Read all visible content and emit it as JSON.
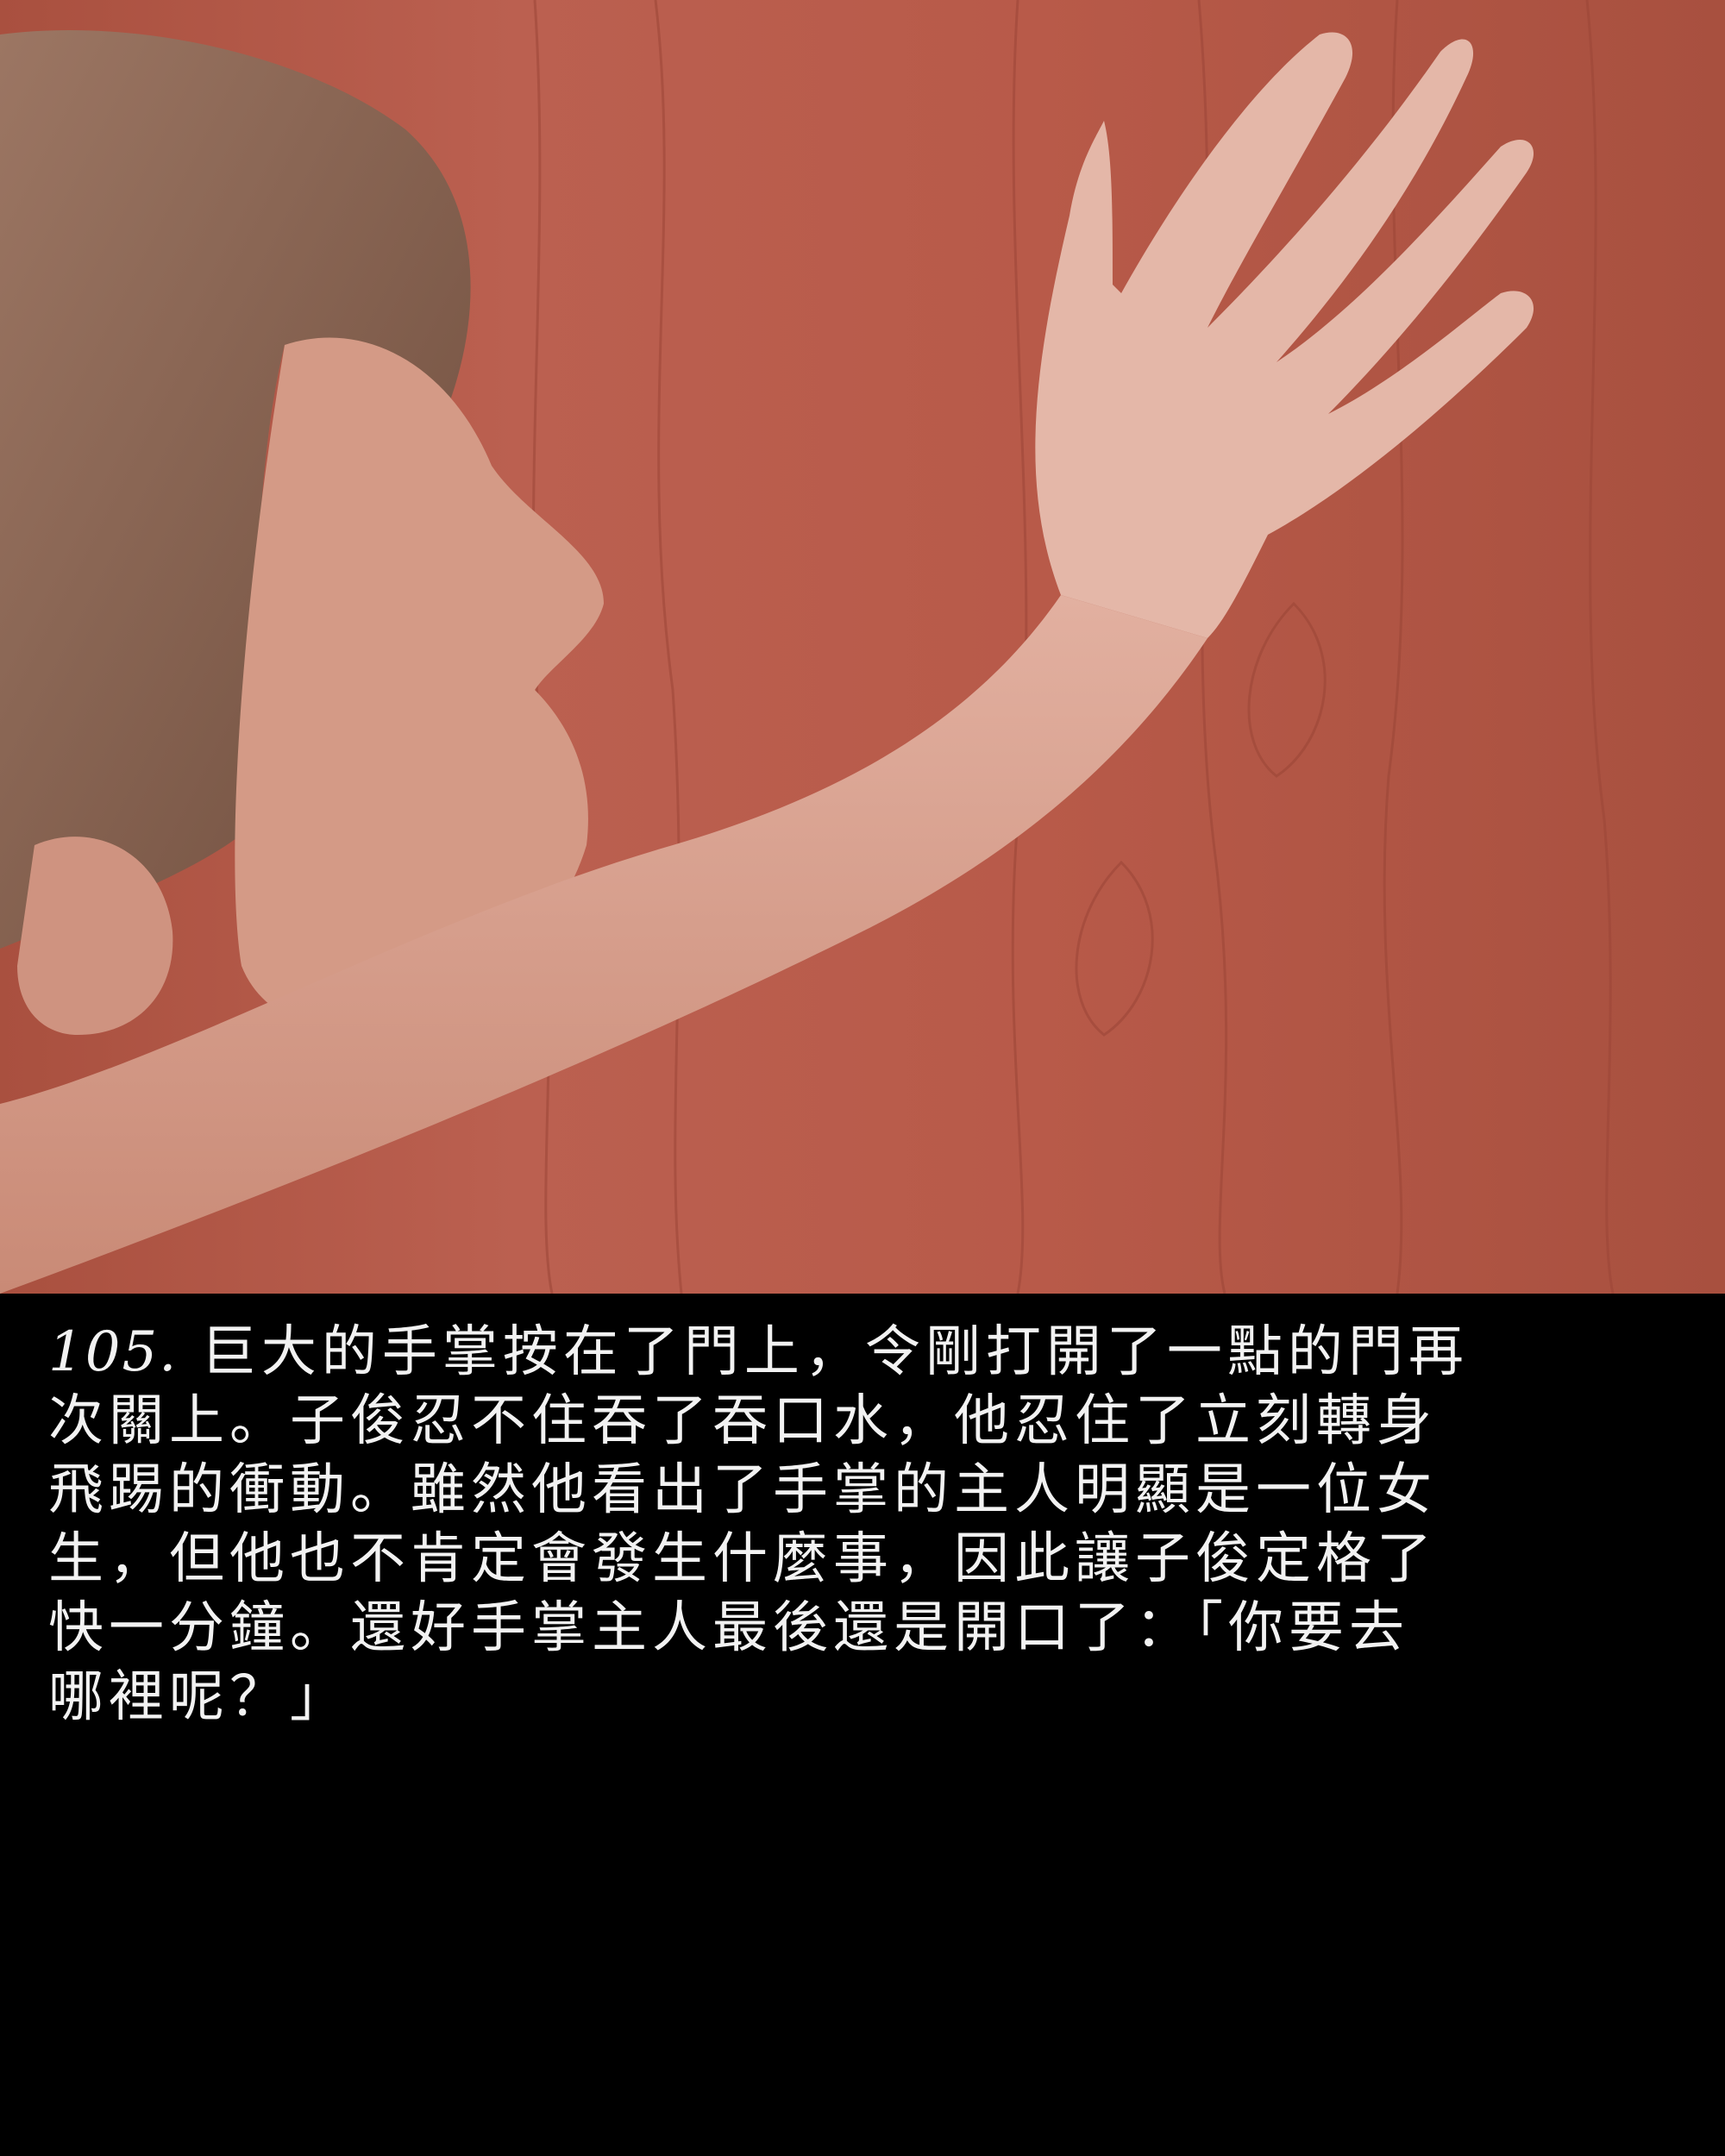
{
  "panel": {
    "number": "105.",
    "lines": [
      "巨大的手掌按在了門上，令剛打開了一點的門再",
      "次關上。子俊忍不住吞了吞口水，他忍住了立刻轉身",
      "飛踢的衝動。雖然他看出了手掌的主人明顯是一位女",
      "生，但他也不肯定會發生什麼事，因此讓子俊定格了",
      "快一分鐘。還好手掌主人最後還是開口了：「你要去",
      "哪裡呢？」"
    ]
  },
  "colors": {
    "door": "#b85a49",
    "skin": "#d9a08d",
    "hair": "#8a6552",
    "caption_bg": "#000000",
    "caption_text": "#f2f2f2"
  }
}
